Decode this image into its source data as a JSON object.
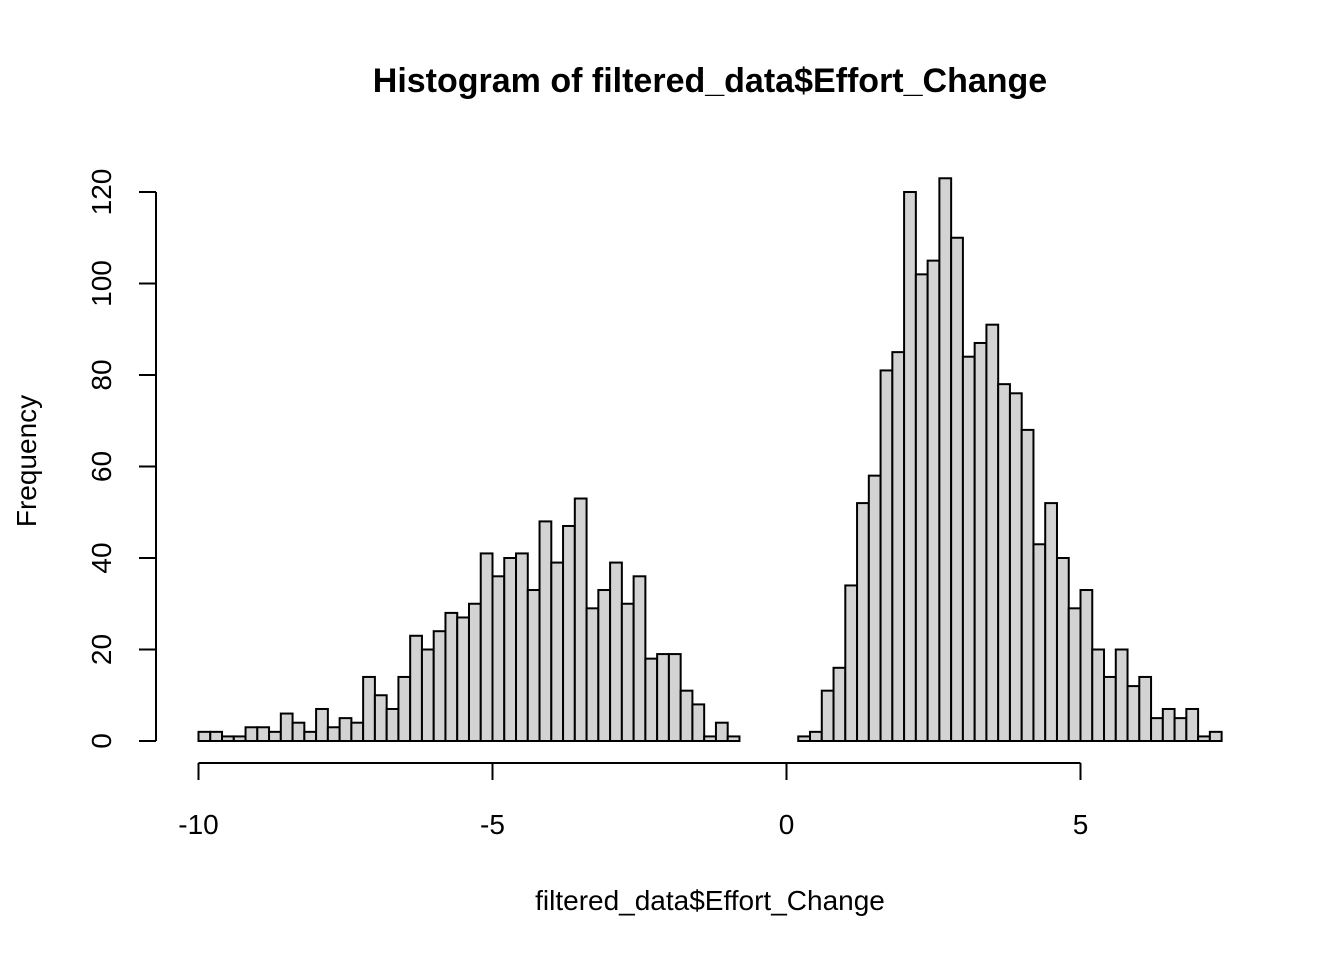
{
  "chart_data": {
    "type": "bar",
    "title": "Histogram of filtered_data$Effort_Change",
    "xlabel": "filtered_data$Effort_Change",
    "ylabel": "Frequency",
    "bar_color": "#d3d3d3",
    "border_color": "#000000",
    "bin_start": -10,
    "bin_width": 0.2,
    "values": [
      2,
      2,
      1,
      1,
      3,
      3,
      2,
      6,
      4,
      2,
      7,
      3,
      5,
      4,
      14,
      10,
      7,
      14,
      23,
      20,
      24,
      28,
      27,
      30,
      41,
      36,
      40,
      41,
      33,
      48,
      39,
      47,
      53,
      29,
      33,
      39,
      30,
      36,
      18,
      19,
      19,
      11,
      8,
      1,
      4,
      1,
      0,
      0,
      0,
      0,
      0,
      1,
      2,
      11,
      16,
      34,
      52,
      58,
      81,
      85,
      120,
      102,
      105,
      123,
      110,
      84,
      87,
      91,
      78,
      76,
      68,
      43,
      52,
      40,
      29,
      33,
      20,
      14,
      20,
      12,
      14,
      5,
      7,
      5,
      7,
      1,
      2
    ],
    "xlim": [
      -10,
      7.4
    ],
    "ylim": [
      0,
      120
    ],
    "x_ticks": [
      -10,
      -5,
      0,
      5
    ],
    "x_tick_labels": [
      "-10",
      "-5",
      "0",
      "5"
    ],
    "y_ticks": [
      0,
      20,
      40,
      60,
      80,
      100,
      120
    ],
    "y_tick_labels": [
      "0",
      "20",
      "40",
      "60",
      "80",
      "100",
      "120"
    ],
    "grid": false,
    "legend": "none"
  }
}
